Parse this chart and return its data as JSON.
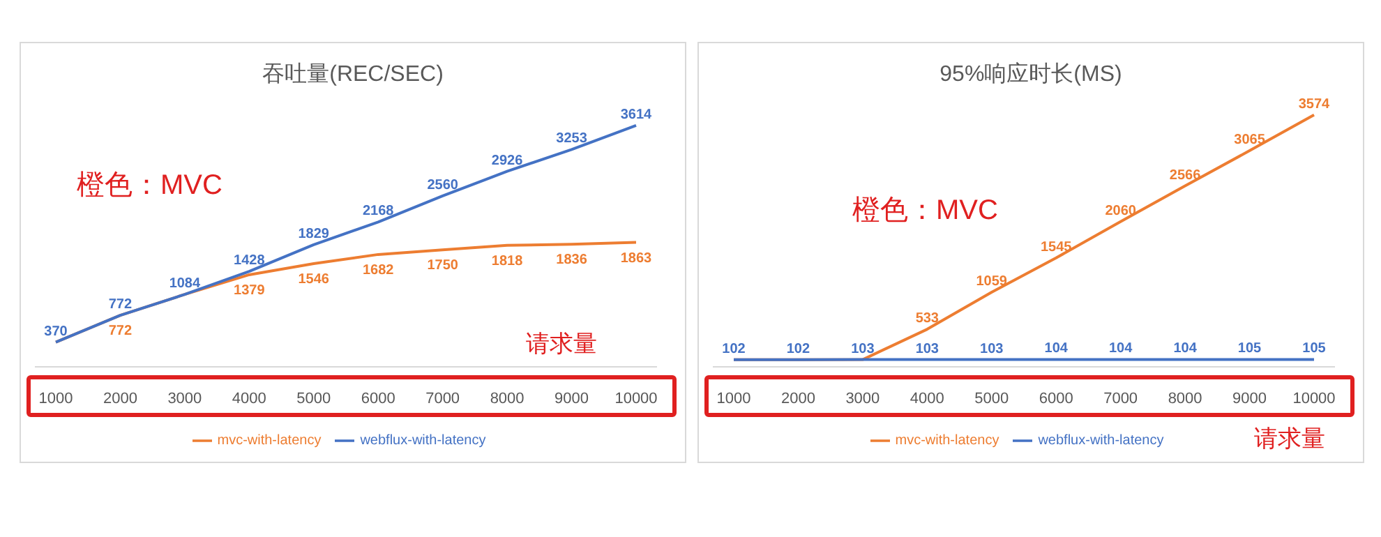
{
  "chart_data": [
    {
      "type": "line",
      "title": "吞吐量(REC/SEC)",
      "categories": [
        "1000",
        "2000",
        "3000",
        "4000",
        "5000",
        "6000",
        "7000",
        "8000",
        "9000",
        "10000"
      ],
      "legend": "bottom",
      "marker": "none",
      "annotations": [
        "橙色：MVC",
        "请求量"
      ],
      "series": [
        {
          "name": "mvc-with-latency",
          "color": "#ed7d31",
          "values": [
            370,
            772,
            1084,
            1379,
            1546,
            1682,
            1750,
            1818,
            1836,
            1863
          ],
          "value_labels": [
            null,
            "772",
            null,
            "1379",
            "1546",
            "1682",
            "1750",
            "1818",
            "1836",
            "1863"
          ]
        },
        {
          "name": "webflux-with-latency",
          "color": "#4472c4",
          "values": [
            370,
            772,
            1084,
            1428,
            1829,
            2168,
            2560,
            2926,
            3253,
            3614
          ],
          "value_labels": [
            "370",
            "772",
            "1084",
            "1428",
            "1829",
            "2168",
            "2560",
            "2926",
            "3253",
            "3614"
          ]
        }
      ]
    },
    {
      "type": "line",
      "title": "95%响应时长(MS)",
      "categories": [
        "1000",
        "2000",
        "3000",
        "4000",
        "5000",
        "6000",
        "7000",
        "8000",
        "9000",
        "10000"
      ],
      "legend": "bottom",
      "marker": "none",
      "annotations": [
        "橙色：MVC",
        "请求量"
      ],
      "series": [
        {
          "name": "mvc-with-latency",
          "color": "#ed7d31",
          "values": [
            102,
            102,
            103,
            533,
            1059,
            1545,
            2060,
            2566,
            3065,
            3574
          ],
          "value_labels": [
            null,
            null,
            null,
            "533",
            "1059",
            "1545",
            "2060",
            "2566",
            "3065",
            "3574"
          ]
        },
        {
          "name": "webflux-with-latency",
          "color": "#4472c4",
          "values": [
            102,
            102,
            103,
            103,
            103,
            104,
            104,
            104,
            105,
            105
          ],
          "value_labels": [
            "102",
            "102",
            "103",
            "103",
            "103",
            "104",
            "104",
            "104",
            "105",
            "105"
          ]
        }
      ]
    }
  ]
}
